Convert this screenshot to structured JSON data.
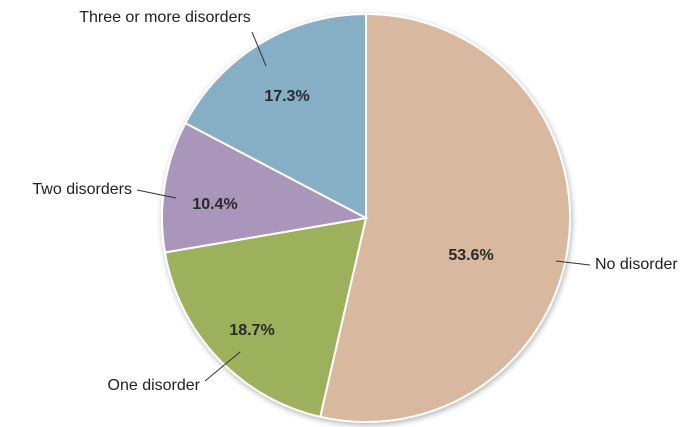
{
  "chart_data": {
    "type": "pie",
    "categories": [
      "No disorder",
      "One disorder",
      "Two disorders",
      "Three or more disorders"
    ],
    "values": [
      53.6,
      18.7,
      10.4,
      17.3
    ],
    "value_labels": [
      "53.6%",
      "18.7%",
      "10.4%",
      "17.3%"
    ],
    "colors": [
      "#d8b89e",
      "#9db05c",
      "#a996ba",
      "#86aec4"
    ]
  }
}
